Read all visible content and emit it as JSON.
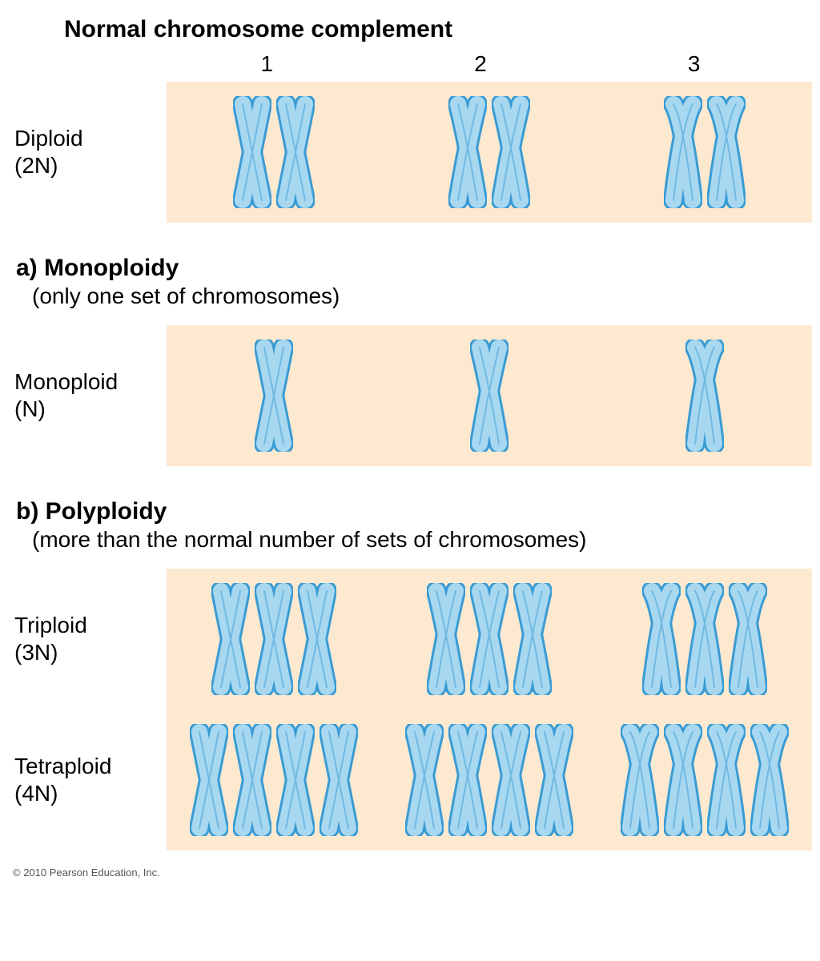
{
  "title": "Normal chromosome complement",
  "column_headers": [
    "1",
    "2",
    "3"
  ],
  "sections": {
    "normal": {
      "rows": [
        {
          "label_line1": "Diploid",
          "label_line2": "(2N)",
          "count": 2
        }
      ]
    },
    "monoploidy": {
      "heading": "a) Monoploidy",
      "sub": "(only one set of chromosomes)",
      "rows": [
        {
          "label_line1": "Monoploid",
          "label_line2": "(N)",
          "count": 1
        }
      ]
    },
    "polyploidy": {
      "heading": "b) Polyploidy",
      "sub": "(more than the normal number of sets of chromosomes)",
      "rows": [
        {
          "label_line1": "Triploid",
          "label_line2": "(3N)",
          "count": 3
        },
        {
          "label_line1": "Tetraploid",
          "label_line2": "(4N)",
          "count": 4
        }
      ]
    }
  },
  "chromosome_style": {
    "fill": "#a8d8f0",
    "stroke": "#3a9bd4",
    "stroke_width": 3,
    "background_band": "#fce9d0",
    "height": 140,
    "width": 48,
    "centromere_ratios": [
      0.5,
      0.42,
      0.22
    ]
  },
  "copyright": "© 2010 Pearson Education, Inc."
}
